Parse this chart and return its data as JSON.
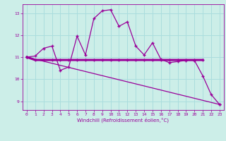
{
  "title": "",
  "xlabel": "Windchill (Refroidissement éolien,°C)",
  "bg_color": "#cceee8",
  "grid_color": "#aadddd",
  "line_color": "#990099",
  "xlim": [
    -0.5,
    23.5
  ],
  "ylim": [
    8.6,
    13.4
  ],
  "yticks": [
    9,
    10,
    11,
    12,
    13
  ],
  "xticks": [
    0,
    1,
    2,
    3,
    4,
    5,
    6,
    7,
    8,
    9,
    10,
    11,
    12,
    13,
    14,
    15,
    16,
    17,
    18,
    19,
    20,
    21,
    22,
    23
  ],
  "line1_x": [
    0,
    1,
    2,
    3,
    4,
    5,
    6,
    7,
    8,
    9,
    10,
    11,
    12,
    13,
    14,
    15,
    16,
    17,
    18,
    19,
    20,
    21,
    22,
    23
  ],
  "line1_y": [
    11.0,
    11.05,
    11.4,
    11.5,
    10.4,
    10.55,
    11.95,
    11.1,
    12.75,
    13.1,
    13.15,
    12.4,
    12.6,
    11.5,
    11.1,
    11.65,
    10.9,
    10.75,
    10.8,
    10.85,
    10.85,
    10.15,
    9.3,
    8.85
  ],
  "line2_x": [
    0,
    1,
    2,
    3,
    4,
    5,
    6,
    7,
    8,
    9,
    10,
    11,
    12,
    13,
    14,
    15,
    16,
    17,
    18,
    19,
    20,
    21
  ],
  "line2_y": [
    11.0,
    10.87,
    10.87,
    10.87,
    10.87,
    10.87,
    10.87,
    10.87,
    10.87,
    10.87,
    10.87,
    10.87,
    10.87,
    10.87,
    10.87,
    10.87,
    10.87,
    10.87,
    10.87,
    10.87,
    10.87,
    10.87
  ],
  "line3_x": [
    0,
    23
  ],
  "line3_y": [
    11.0,
    8.85
  ],
  "marker": "+"
}
